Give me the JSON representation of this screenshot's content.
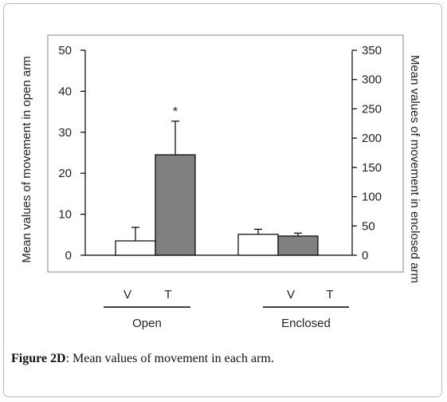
{
  "caption": {
    "label": "Figure 2D",
    "separator": ": ",
    "text": "Mean values of movement in each arm."
  },
  "chart_data": {
    "type": "bar",
    "groups": [
      "Open",
      "Enclosed"
    ],
    "bar_labels": [
      "V",
      "T"
    ],
    "ylabel_left": "Mean values of movement in open arm",
    "ylabel_right": "Mean values of movement in enclosed arm",
    "ylim_left": [
      0,
      50
    ],
    "yticks_left": [
      0,
      10,
      20,
      30,
      40,
      50
    ],
    "ylim_right": [
      0,
      350
    ],
    "yticks_right": [
      0,
      50,
      100,
      150,
      200,
      250,
      300,
      350
    ],
    "series": [
      {
        "name": "V",
        "fill": "#ffffff",
        "values": [
          3.5,
          35.7
        ],
        "errors": [
          3.3,
          8.7
        ]
      },
      {
        "name": "T",
        "fill": "#808080",
        "values": [
          24.5,
          32.8
        ],
        "errors": [
          8.2,
          5.0
        ]
      }
    ],
    "annotations": [
      {
        "group": 0,
        "series": 1,
        "text": "*"
      }
    ],
    "grid": false,
    "colors": {
      "bar_outline": "#000000",
      "plot_border": "#9a9a9a"
    }
  }
}
